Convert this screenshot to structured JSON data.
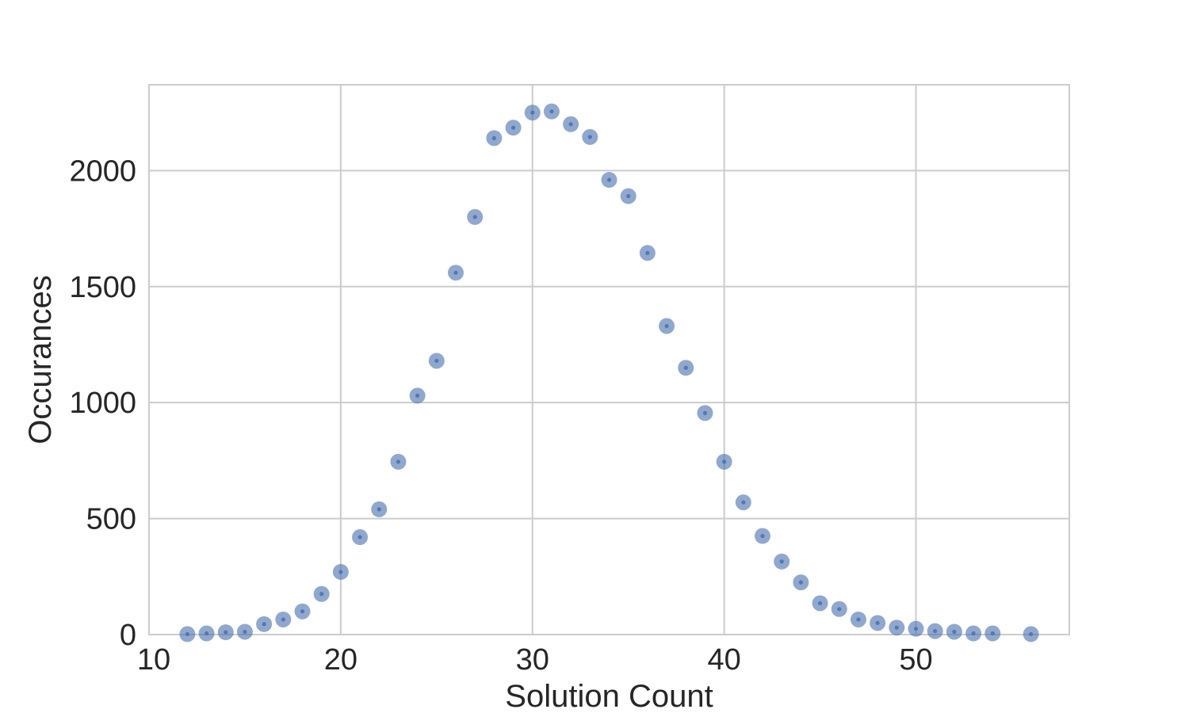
{
  "chart_data": {
    "type": "scatter",
    "xlabel": "Solution Count",
    "ylabel": "Occurances",
    "xlim": [
      10,
      58
    ],
    "ylim": [
      0,
      2370
    ],
    "xticks": [
      10,
      20,
      30,
      40,
      50
    ],
    "yticks": [
      0,
      500,
      1000,
      1500,
      2000
    ],
    "grid": true,
    "colors": {
      "marker": "#4c72b0",
      "grid": "#cccccc",
      "text": "#262626"
    },
    "series": [
      {
        "x": [
          12,
          13,
          14,
          15,
          16,
          17,
          18,
          19,
          20,
          21,
          22,
          23,
          24,
          25,
          26,
          27,
          28,
          29,
          30,
          31,
          32,
          33,
          34,
          35,
          36,
          37,
          38,
          39,
          40,
          41,
          42,
          43,
          44,
          45,
          46,
          47,
          48,
          49,
          50,
          51,
          52,
          53,
          54,
          56
        ],
        "y": [
          2,
          5,
          10,
          12,
          45,
          65,
          100,
          175,
          270,
          420,
          540,
          745,
          1030,
          1180,
          1560,
          1800,
          2140,
          2185,
          2250,
          2255,
          2200,
          2145,
          1960,
          1890,
          1645,
          1330,
          1150,
          955,
          745,
          570,
          425,
          315,
          225,
          135,
          110,
          65,
          50,
          30,
          25,
          15,
          12,
          5,
          5,
          2
        ]
      }
    ]
  }
}
